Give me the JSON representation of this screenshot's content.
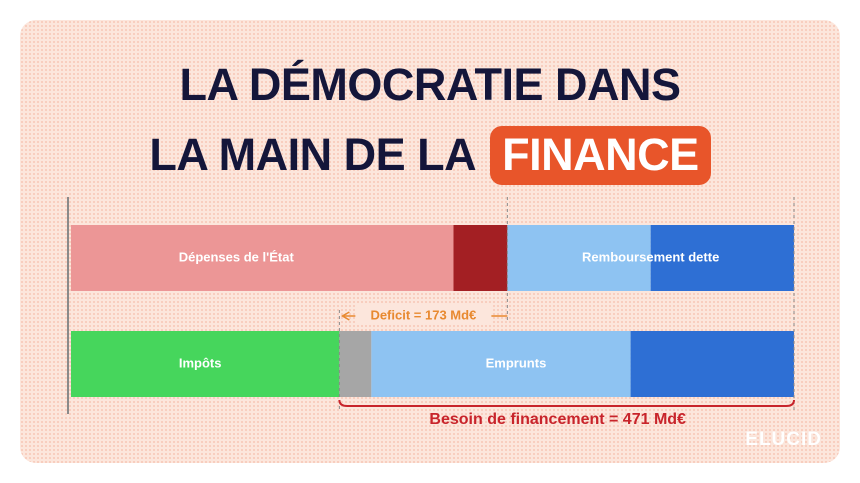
{
  "title": {
    "line1": "LA DÉMOCRATIE DANS",
    "line2_prefix": "LA MAIN DE LA",
    "line2_highlight": "FINANCE"
  },
  "logo": "ELUCID",
  "colors": {
    "depenses": "#ec9696",
    "deficit_dark": "#a31f23",
    "remboursement_light": "#8ec3f2",
    "remboursement_dark": "#2e6fd4",
    "impots": "#46d65c",
    "gris": "#a6a6a6",
    "emprunts_light": "#8ec3f2",
    "emprunts_dark": "#2e6fd4",
    "deficit_bracket": "#e8892f",
    "besoin_bracket": "#c8242b"
  },
  "chart_data": {
    "type": "bar",
    "orientation": "horizontal-stacked",
    "title": "",
    "xlabel": "",
    "ylabel": "",
    "unit": "Md€",
    "rows": [
      {
        "segments": [
          {
            "label": "Dépenses de l'État",
            "value": 419,
            "color": "#ec9696"
          },
          {
            "label": "",
            "value": 59,
            "color": "#a31f23"
          },
          {
            "label": "Remboursement dette",
            "value": 157,
            "color": "#8ec3f2"
          },
          {
            "label": "",
            "value": 157,
            "color": "#2e6fd4"
          }
        ]
      },
      {
        "segments": [
          {
            "label": "Impôts",
            "value": 294,
            "color": "#46d65c"
          },
          {
            "label": "",
            "value": 35,
            "color": "#a6a6a6"
          },
          {
            "label": "Emprunts",
            "value": 284,
            "color": "#8ec3f2"
          },
          {
            "label": "",
            "value": 179,
            "color": "#2e6fd4"
          }
        ]
      }
    ],
    "annotations": [
      {
        "label": "Deficit = 173 Md€",
        "value": 173,
        "color": "#e8892f"
      },
      {
        "label": "Besoin de financement = 471 Md€",
        "value": 471,
        "color": "#c8242b"
      }
    ]
  }
}
